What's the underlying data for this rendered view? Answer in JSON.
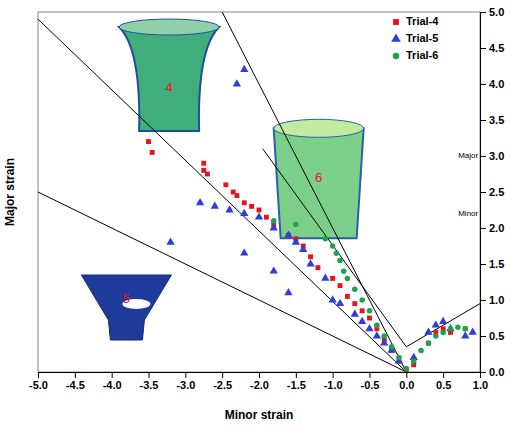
{
  "chart_data": {
    "type": "scatter",
    "x_label": "Minor strain",
    "y_label": "Major strain",
    "xlim": [
      -5,
      1
    ],
    "ylim": [
      0,
      5
    ],
    "xticks": [
      {
        "value": -5,
        "label": "-5.0"
      },
      -4.5,
      {
        "value": -4,
        "label": "-4.0"
      },
      -3.5,
      {
        "value": -3,
        "label": "-3.0"
      },
      -2.5,
      {
        "value": -2,
        "label": "-2.0"
      },
      -1.5,
      {
        "value": -1,
        "label": "-1.0"
      },
      -0.5,
      {
        "value": 0,
        "label": "0.0"
      },
      0.5,
      {
        "value": 1,
        "label": "1.0"
      }
    ],
    "yticks": [
      {
        "value": 0,
        "label": "0.0"
      },
      0.5,
      {
        "value": 1,
        "label": "1.0"
      },
      1.5,
      {
        "value": 2,
        "label": "2.0"
      },
      2.5,
      {
        "value": 3,
        "label": "3.0"
      },
      3.5,
      {
        "value": 4,
        "label": "4.0"
      },
      4.5,
      {
        "value": 5,
        "label": "5.0"
      }
    ],
    "grid": false,
    "legend": "top-right",
    "series": [
      {
        "name": "Trial-4",
        "color": "#e8141c",
        "marker": "square",
        "type": "scatter",
        "x": [
          -3.5,
          -3.45,
          -2.75,
          -2.75,
          -2.7,
          -2.45,
          -2.35,
          -2.3,
          -2.2,
          -2.1,
          -2.0,
          -1.9,
          -1.8,
          -1.6,
          -1.5,
          -1.4,
          -1.3,
          -1.2,
          -1.0,
          -0.9,
          -0.8,
          -0.7,
          -0.6,
          -0.5,
          -0.4,
          -0.3,
          -0.2,
          -0.1,
          0.0,
          0.1,
          0.3,
          0.4,
          0.5,
          0.6,
          0.8
        ],
        "values": [
          3.2,
          3.05,
          2.9,
          2.8,
          2.75,
          2.6,
          2.5,
          2.45,
          2.35,
          2.3,
          2.25,
          2.15,
          2.05,
          1.9,
          1.85,
          1.75,
          1.6,
          1.45,
          1.3,
          1.2,
          1.05,
          0.95,
          0.85,
          0.75,
          0.6,
          0.45,
          0.3,
          0.15,
          0.02,
          0.1,
          0.4,
          0.55,
          0.6,
          0.55,
          0.6
        ]
      },
      {
        "name": "Trial-5",
        "color": "#2f3ed8",
        "marker": "triangle",
        "type": "scatter",
        "x": [
          -2.2,
          -2.3,
          -2.8,
          -2.6,
          -2.4,
          -2.2,
          -2.0,
          -1.8,
          -1.6,
          -1.5,
          -1.4,
          -3.2,
          -2.2,
          -1.8,
          -1.6,
          -1.3,
          -1.1,
          -1.0,
          -0.9,
          -0.7,
          -0.6,
          -0.5,
          -0.4,
          -0.3,
          -0.2,
          -0.1,
          0.1,
          0.3,
          0.4,
          0.5,
          0.6,
          0.8,
          0.9
        ],
        "values": [
          4.2,
          4.0,
          2.35,
          2.3,
          2.25,
          2.2,
          2.15,
          2.0,
          1.9,
          1.8,
          1.7,
          1.8,
          1.65,
          1.4,
          1.1,
          1.5,
          1.3,
          1.0,
          0.95,
          0.8,
          0.7,
          0.6,
          0.5,
          0.4,
          0.3,
          0.15,
          0.2,
          0.55,
          0.65,
          0.7,
          0.6,
          0.5,
          0.55
        ]
      },
      {
        "name": "Trial-6",
        "color": "#1aa54b",
        "marker": "circle",
        "type": "scatter",
        "x": [
          -1.8,
          -1.5,
          -1.1,
          -1.0,
          -0.95,
          -0.9,
          -0.85,
          -0.8,
          -0.7,
          -0.6,
          -0.5,
          -0.4,
          -0.3,
          -0.2,
          -0.1,
          0.0,
          0.1,
          0.2,
          0.3,
          0.4,
          0.5,
          0.6,
          0.7,
          0.8
        ],
        "values": [
          2.1,
          2.05,
          1.85,
          1.75,
          1.65,
          1.55,
          1.4,
          1.3,
          1.15,
          1.0,
          0.85,
          0.65,
          0.5,
          0.35,
          0.2,
          0.05,
          0.15,
          0.3,
          0.4,
          0.5,
          0.55,
          0.6,
          0.62,
          0.6
        ]
      },
      {
        "type": "line",
        "color": "#000000",
        "line_style": "solid",
        "x": [
          -5,
          0
        ],
        "values": [
          2.5,
          0
        ]
      },
      {
        "type": "line",
        "color": "#000000",
        "line_style": "solid",
        "x": [
          -5,
          0
        ],
        "values": [
          4.9,
          0
        ]
      },
      {
        "type": "line",
        "color": "#000000",
        "line_style": "solid",
        "x": [
          -2.5,
          0
        ],
        "values": [
          5,
          0
        ]
      },
      {
        "type": "line",
        "color": "#000000",
        "line_style": "solid",
        "x": [
          -1.95,
          0
        ],
        "values": [
          3.1,
          0.35
        ]
      },
      {
        "type": "line",
        "color": "#000000",
        "line_style": "solid",
        "x": [
          0,
          1
        ],
        "values": [
          0.35,
          0.95
        ]
      }
    ],
    "annotations": [
      {
        "text": "4",
        "x": -3.22,
        "y": 3.93
      },
      {
        "text": "6",
        "x": -1.19,
        "y": 2.69
      },
      {
        "text": "5",
        "x": -3.8,
        "y": 1.0
      },
      {
        "text": "Major",
        "x": 0.84,
        "y": 3.0
      },
      {
        "text": "Minor",
        "x": 0.84,
        "y": 2.2
      }
    ]
  }
}
